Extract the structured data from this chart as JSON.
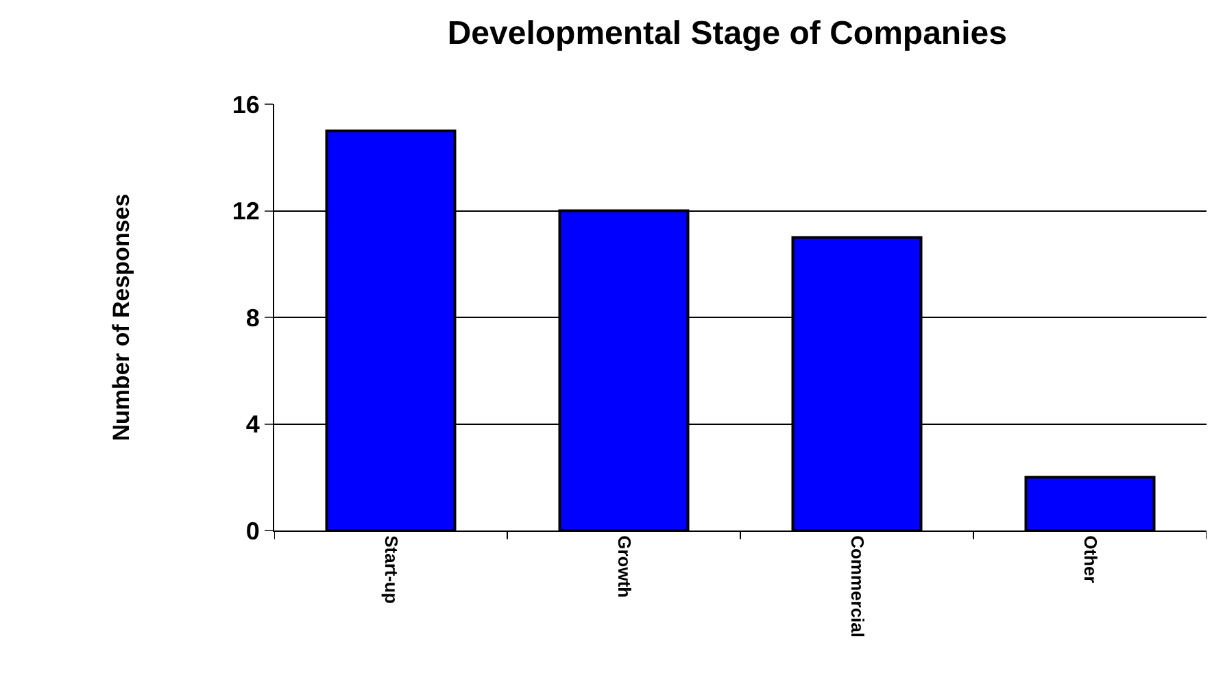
{
  "chart_data": {
    "type": "bar",
    "title": "Developmental Stage of Companies",
    "ylabel": "Number of Responses",
    "categories": [
      "Start-up",
      "Growth",
      "Commercial",
      "Other"
    ],
    "values": [
      15,
      12,
      11,
      2
    ],
    "color": "#0000ff",
    "ylim": [
      0,
      16
    ],
    "yticks": [
      0,
      4,
      8,
      12,
      16
    ],
    "grid": "y",
    "legend": false
  }
}
